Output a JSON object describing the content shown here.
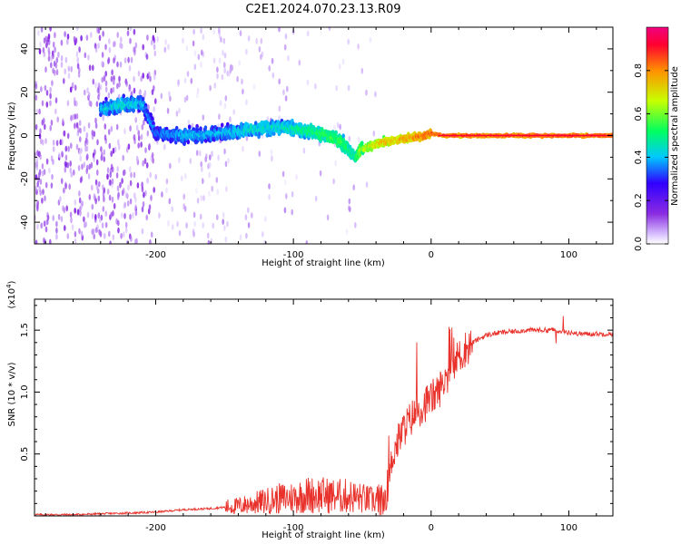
{
  "figure": {
    "title": "C2E1.2024.070.23.13.R09"
  },
  "chart_data": [
    {
      "type": "heatmap",
      "xlabel": "Height of straight line (km)",
      "ylabel": "Frequency (Hz)",
      "xlim": [
        -288,
        132
      ],
      "ylim": [
        -50,
        50
      ],
      "xticks": [
        -200,
        -100,
        0,
        100
      ],
      "xtick_labels": [
        "-200",
        "-100",
        "0",
        "100"
      ],
      "yticks": [
        -40,
        -20,
        0,
        20,
        40
      ],
      "ytick_labels": [
        "-40",
        "-20",
        "0",
        "20",
        "40"
      ],
      "colorbar": {
        "label": "Normalized spectral amplitude",
        "range": [
          0,
          1
        ],
        "ticks": [
          0.0,
          0.2,
          0.4,
          0.6,
          0.8
        ],
        "tick_labels": [
          "0.0",
          "0.2",
          "0.4",
          "0.6",
          "0.8"
        ],
        "colormap": [
          "#ffffff",
          "#dcc8ff",
          "#8a2be2",
          "#3000ff",
          "#00c8ff",
          "#00ff60",
          "#c8ff00",
          "#ff9000",
          "#ff0030",
          "#f00080"
        ]
      },
      "ridge": {
        "x": [
          -240,
          -225,
          -210,
          -200,
          -180,
          -150,
          -130,
          -110,
          -90,
          -75,
          -65,
          -55,
          -52,
          -45,
          -35,
          -25,
          -15,
          -5,
          0,
          10,
          20,
          40,
          60,
          80,
          100,
          132
        ],
        "y": [
          12,
          14,
          15,
          1,
          0,
          1,
          3,
          4,
          2,
          0,
          -3,
          -10,
          -7,
          -5,
          -3,
          -2,
          -1,
          0,
          1,
          0,
          0,
          0,
          0,
          0,
          0,
          0
        ],
        "amplitude": [
          0.45,
          0.5,
          0.45,
          0.4,
          0.45,
          0.45,
          0.5,
          0.5,
          0.55,
          0.6,
          0.6,
          0.55,
          0.65,
          0.75,
          0.8,
          0.8,
          0.85,
          0.9,
          0.9,
          0.9,
          0.92,
          0.92,
          0.92,
          0.92,
          0.92,
          0.92
        ]
      },
      "grid": false
    },
    {
      "type": "line",
      "xlabel": "Height of straight line (km)",
      "ylabel": "SNR (10 * v/v)",
      "y_multiplier_label": "(x10",
      "y_multiplier_exp": "4",
      "y_multiplier_close": ")",
      "xlim": [
        -288,
        132
      ],
      "ylim": [
        0,
        1.75
      ],
      "xticks": [
        -200,
        -100,
        0,
        100
      ],
      "xtick_labels": [
        "-200",
        "-100",
        "0",
        "100"
      ],
      "yticks": [
        0.5,
        1.0,
        1.5
      ],
      "ytick_labels": [
        "0.5",
        "1.0",
        "1.5"
      ],
      "color": "#e8322b",
      "series": [
        {
          "x": [
            -288,
            -260,
            -230,
            -200,
            -180,
            -160,
            -140,
            -130,
            -120,
            -110,
            -100,
            -90,
            -80,
            -70,
            -60,
            -50,
            -45,
            -40,
            -35,
            -30,
            -28,
            -26,
            -24,
            -22,
            -20,
            -15,
            -10,
            -5,
            0,
            5,
            10,
            15,
            20,
            25,
            30,
            35,
            40,
            50,
            60,
            70,
            80,
            90,
            95,
            100,
            110,
            120,
            132
          ],
          "y": [
            0.01,
            0.01,
            0.02,
            0.03,
            0.05,
            0.06,
            0.08,
            0.1,
            0.12,
            0.14,
            0.15,
            0.17,
            0.17,
            0.16,
            0.16,
            0.14,
            0.13,
            0.12,
            0.1,
            0.3,
            0.5,
            0.55,
            0.6,
            0.65,
            0.7,
            0.78,
            0.85,
            0.9,
            0.95,
            1.0,
            1.1,
            1.2,
            1.28,
            1.35,
            1.4,
            1.43,
            1.46,
            1.48,
            1.49,
            1.5,
            1.5,
            1.5,
            1.49,
            1.48,
            1.47,
            1.47,
            1.47
          ]
        }
      ],
      "grid": false
    }
  ]
}
